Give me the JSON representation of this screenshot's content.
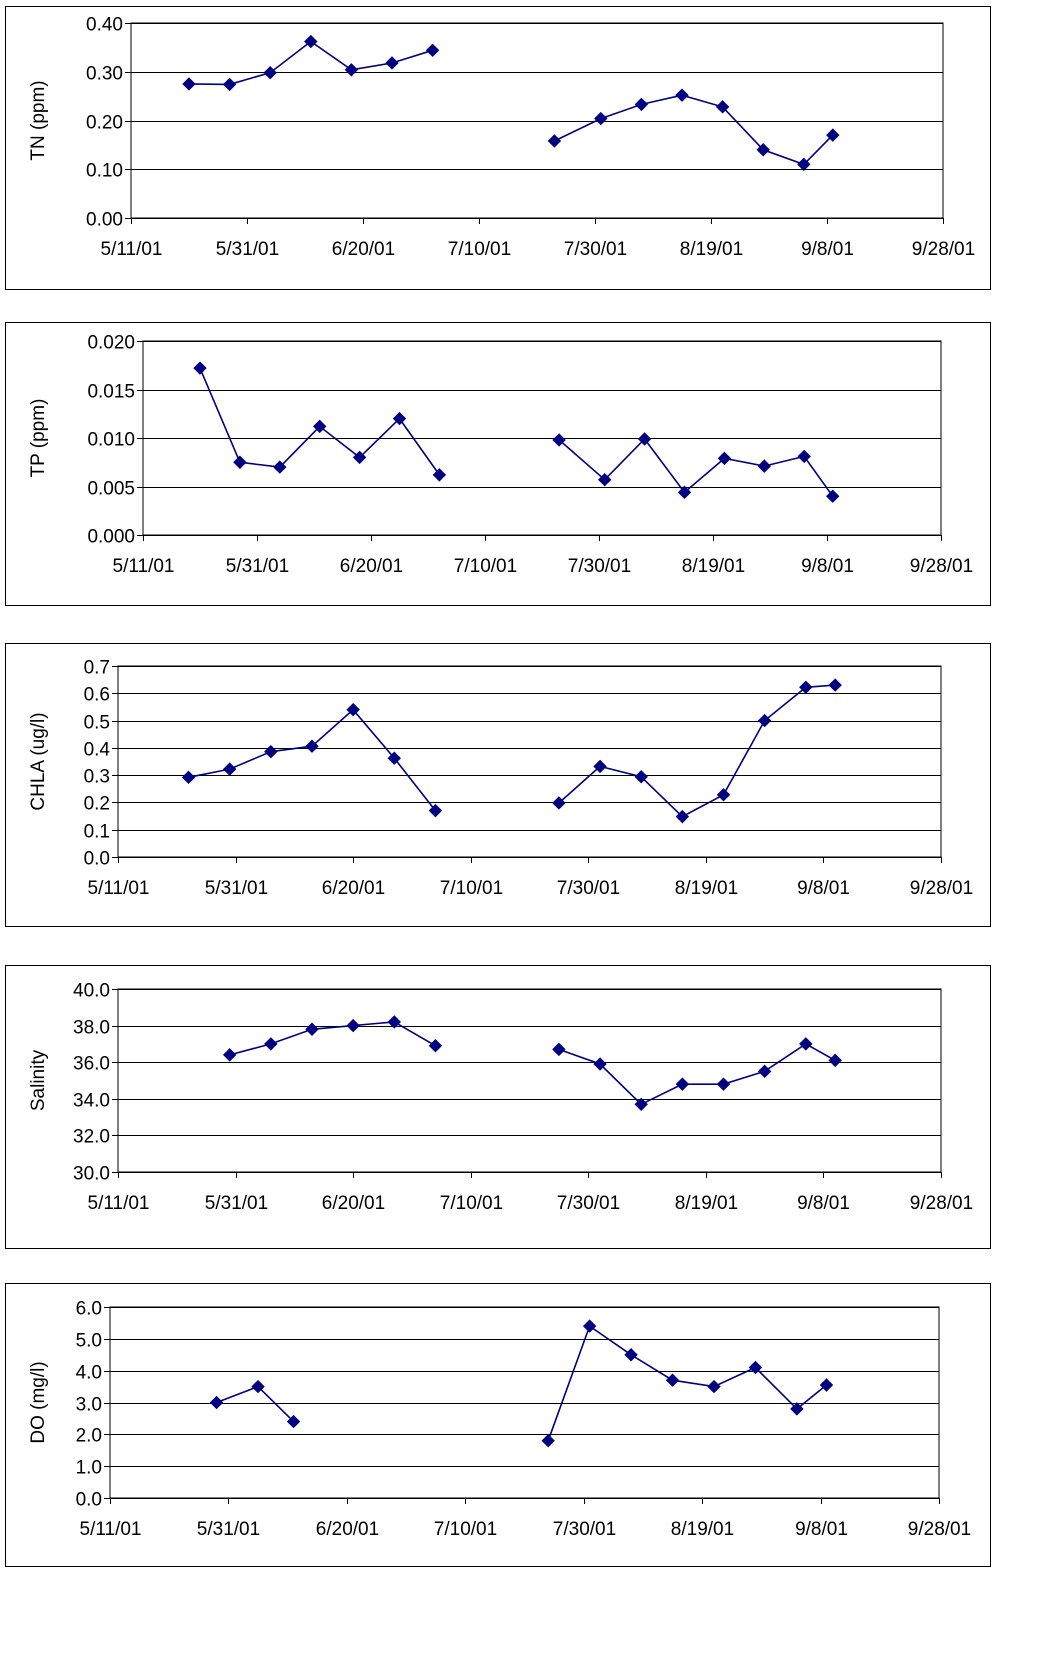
{
  "x_tick_labels": [
    "5/11/01",
    "5/31/01",
    "6/20/01",
    "7/10/01",
    "7/30/01",
    "8/19/01",
    "9/8/01",
    "9/28/01"
  ],
  "colors": {
    "series": "#000080",
    "grid": "#000000",
    "border": "#000000"
  },
  "chart_data": [
    {
      "type": "line",
      "ylabel": "TN (ppm)",
      "y_tick_labels": [
        "0.00",
        "0.10",
        "0.20",
        "0.30",
        "0.40"
      ],
      "ylim": [
        0,
        0.4
      ],
      "xlim": [
        "2001-05-11",
        "2001-09-28"
      ],
      "marker": "diamond",
      "grid": "horizontal",
      "series": [
        {
          "points": [
            {
              "x": "2001-05-21",
              "y": 0.275
            },
            {
              "x": "2001-05-28",
              "y": 0.274
            },
            {
              "x": "2001-06-04",
              "y": 0.298
            },
            {
              "x": "2001-06-11",
              "y": 0.362
            },
            {
              "x": "2001-06-18",
              "y": 0.304
            },
            {
              "x": "2001-06-25",
              "y": 0.318
            },
            {
              "x": "2001-07-02",
              "y": 0.344
            },
            null,
            {
              "x": "2001-07-23",
              "y": 0.158
            },
            {
              "x": "2001-07-31",
              "y": 0.204
            },
            {
              "x": "2001-08-07",
              "y": 0.233
            },
            {
              "x": "2001-08-14",
              "y": 0.252
            },
            {
              "x": "2001-08-21",
              "y": 0.228
            },
            {
              "x": "2001-08-28",
              "y": 0.14
            },
            {
              "x": "2001-09-04",
              "y": 0.11
            },
            {
              "x": "2001-09-09",
              "y": 0.17
            }
          ]
        }
      ]
    },
    {
      "type": "line",
      "ylabel": "TP (ppm)",
      "y_tick_labels": [
        "0.000",
        "0.005",
        "0.010",
        "0.015",
        "0.020"
      ],
      "ylim": [
        0,
        0.02
      ],
      "xlim": [
        "2001-05-11",
        "2001-09-28"
      ],
      "marker": "diamond",
      "grid": "horizontal",
      "series": [
        {
          "points": [
            {
              "x": "2001-05-21",
              "y": 0.0172
            },
            {
              "x": "2001-05-28",
              "y": 0.0075
            },
            {
              "x": "2001-06-04",
              "y": 0.007
            },
            {
              "x": "2001-06-11",
              "y": 0.0112
            },
            {
              "x": "2001-06-18",
              "y": 0.008
            },
            {
              "x": "2001-06-25",
              "y": 0.012
            },
            {
              "x": "2001-07-02",
              "y": 0.0062
            },
            null,
            {
              "x": "2001-07-23",
              "y": 0.0098
            },
            {
              "x": "2001-07-31",
              "y": 0.0057
            },
            {
              "x": "2001-08-07",
              "y": 0.0099
            },
            {
              "x": "2001-08-14",
              "y": 0.0044
            },
            {
              "x": "2001-08-21",
              "y": 0.0079
            },
            {
              "x": "2001-08-28",
              "y": 0.0071
            },
            {
              "x": "2001-09-04",
              "y": 0.0081
            },
            {
              "x": "2001-09-09",
              "y": 0.004
            }
          ]
        }
      ]
    },
    {
      "type": "line",
      "ylabel": "CHLA (ug/l)",
      "y_tick_labels": [
        "0.0",
        "0.1",
        "0.2",
        "0.3",
        "0.4",
        "0.5",
        "0.6",
        "0.7"
      ],
      "ylim": [
        0,
        0.7
      ],
      "xlim": [
        "2001-05-11",
        "2001-09-28"
      ],
      "marker": "diamond",
      "grid": "horizontal",
      "series": [
        {
          "points": [
            {
              "x": "2001-05-23",
              "y": 0.292
            },
            {
              "x": "2001-05-30",
              "y": 0.322
            },
            {
              "x": "2001-06-06",
              "y": 0.386
            },
            {
              "x": "2001-06-13",
              "y": 0.406
            },
            {
              "x": "2001-06-20",
              "y": 0.54
            },
            {
              "x": "2001-06-27",
              "y": 0.362
            },
            {
              "x": "2001-07-04",
              "y": 0.17
            },
            null,
            {
              "x": "2001-07-25",
              "y": 0.198
            },
            {
              "x": "2001-08-01",
              "y": 0.332
            },
            {
              "x": "2001-08-08",
              "y": 0.294
            },
            {
              "x": "2001-08-15",
              "y": 0.148
            },
            {
              "x": "2001-08-22",
              "y": 0.228
            },
            {
              "x": "2001-08-29",
              "y": 0.5
            },
            {
              "x": "2001-09-05",
              "y": 0.622
            },
            {
              "x": "2001-09-10",
              "y": 0.63
            }
          ]
        }
      ]
    },
    {
      "type": "line",
      "ylabel": "Salinity",
      "y_tick_labels": [
        "30.0",
        "32.0",
        "34.0",
        "36.0",
        "38.0",
        "40.0"
      ],
      "ylim": [
        30,
        40
      ],
      "xlim": [
        "2001-05-11",
        "2001-09-28"
      ],
      "marker": "diamond",
      "grid": "horizontal",
      "series": [
        {
          "points": [
            {
              "x": "2001-05-30",
              "y": 36.4
            },
            {
              "x": "2001-06-06",
              "y": 37.0
            },
            {
              "x": "2001-06-13",
              "y": 37.8
            },
            {
              "x": "2001-06-20",
              "y": 38.0
            },
            {
              "x": "2001-06-27",
              "y": 38.2
            },
            {
              "x": "2001-07-04",
              "y": 36.9
            },
            null,
            {
              "x": "2001-07-25",
              "y": 36.7
            },
            {
              "x": "2001-08-01",
              "y": 35.9
            },
            {
              "x": "2001-08-08",
              "y": 33.7
            },
            {
              "x": "2001-08-15",
              "y": 34.8
            },
            {
              "x": "2001-08-22",
              "y": 34.8
            },
            {
              "x": "2001-08-29",
              "y": 35.5
            },
            {
              "x": "2001-09-05",
              "y": 37.0
            },
            {
              "x": "2001-09-10",
              "y": 36.1
            }
          ]
        }
      ]
    },
    {
      "type": "line",
      "ylabel": "DO (mg/l)",
      "y_tick_labels": [
        "0.0",
        "1.0",
        "2.0",
        "3.0",
        "4.0",
        "5.0",
        "6.0"
      ],
      "ylim": [
        0,
        6
      ],
      "xlim": [
        "2001-05-11",
        "2001-09-28"
      ],
      "marker": "diamond",
      "grid": "horizontal",
      "series": [
        {
          "points": [
            {
              "x": "2001-05-29",
              "y": 3.0
            },
            {
              "x": "2001-06-05",
              "y": 3.5
            },
            {
              "x": "2001-06-11",
              "y": 2.4
            },
            null,
            {
              "x": "2001-07-24",
              "y": 1.8
            },
            {
              "x": "2001-07-31",
              "y": 5.4
            },
            {
              "x": "2001-08-07",
              "y": 4.5
            },
            {
              "x": "2001-08-14",
              "y": 3.7
            },
            {
              "x": "2001-08-21",
              "y": 3.5
            },
            {
              "x": "2001-08-28",
              "y": 4.1
            },
            {
              "x": "2001-09-04",
              "y": 2.8
            },
            {
              "x": "2001-09-09",
              "y": 3.55
            }
          ]
        }
      ]
    }
  ]
}
